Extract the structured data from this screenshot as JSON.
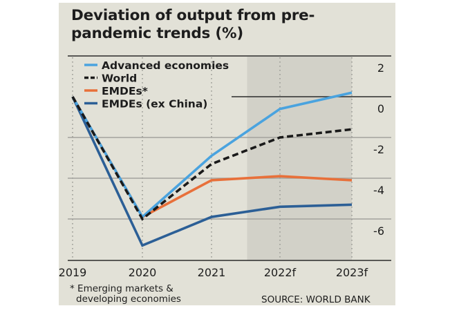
{
  "chart_data": {
    "type": "line",
    "title": "Deviation of output from pre-pandemic trends (%)",
    "xlabel": "",
    "ylabel": "",
    "categories": [
      "2019",
      "2020",
      "2021",
      "2022f",
      "2023f"
    ],
    "yticks": [
      "2",
      "0",
      "-2",
      "-4",
      "-6"
    ],
    "ytick_values": [
      2,
      0,
      -2,
      -4,
      -6
    ],
    "ylim": [
      -8,
      2
    ],
    "grid": true,
    "legend_position": "top-left",
    "forecast_shaded_from": "2022f",
    "series": [
      {
        "name": "Advanced economies",
        "color": "#4aa3df",
        "style": "solid",
        "values": [
          0.0,
          -5.9,
          -2.9,
          -0.6,
          0.2
        ]
      },
      {
        "name": "World",
        "color": "#1a1a1a",
        "style": "dashed",
        "values": [
          0.0,
          -6.0,
          -3.3,
          -2.0,
          -1.6
        ]
      },
      {
        "name": "EMDEs*",
        "color": "#e8703a",
        "style": "solid",
        "values": [
          0.0,
          -5.9,
          -4.1,
          -3.9,
          -4.1
        ]
      },
      {
        "name": "EMDEs (ex China)",
        "color": "#2c5f96",
        "style": "solid",
        "values": [
          0.0,
          -7.3,
          -5.9,
          -5.4,
          -5.3
        ]
      }
    ]
  },
  "footnote": {
    "line1": "* Emerging markets &",
    "line2": "developing economies"
  },
  "source": "SOURCE: WORLD BANK",
  "colors": {
    "panel_bg": "#e2e1d7",
    "forecast_bg": "#d2d1c8",
    "gridline": "#a3a39e",
    "text": "#1d1d1d"
  }
}
